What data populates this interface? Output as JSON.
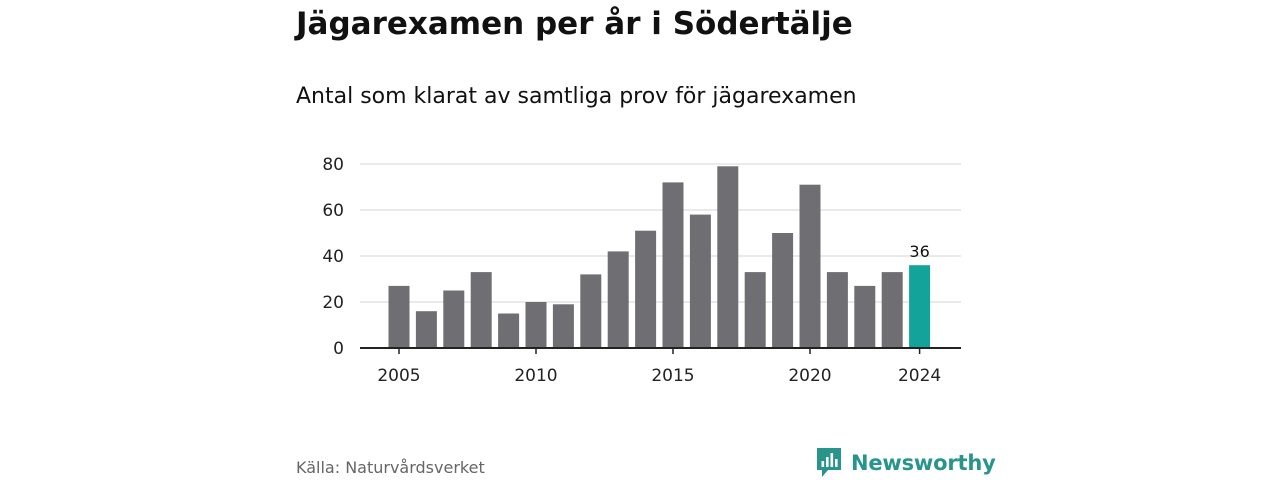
{
  "header": {
    "title": "Jägarexamen per år i Södertälje",
    "subtitle": "Antal som klarat av samtliga prov för jägarexamen"
  },
  "chart_data": {
    "type": "bar",
    "title": "Jägarexamen per år i Södertälje",
    "subtitle": "Antal som klarat av samtliga prov för jägarexamen",
    "xlabel": "",
    "ylabel": "",
    "categories": [
      2005,
      2006,
      2007,
      2008,
      2009,
      2010,
      2011,
      2012,
      2013,
      2014,
      2015,
      2016,
      2017,
      2018,
      2019,
      2020,
      2021,
      2022,
      2023,
      2024
    ],
    "values": [
      27,
      16,
      25,
      33,
      15,
      20,
      19,
      32,
      42,
      51,
      72,
      58,
      79,
      33,
      50,
      71,
      33,
      27,
      33,
      36
    ],
    "ylim": [
      0,
      80
    ],
    "yticks": [
      0,
      20,
      40,
      60,
      80
    ],
    "xticks": [
      2005,
      2010,
      2015,
      2020,
      2024
    ],
    "grid": true,
    "bar_color": "#6f6e73",
    "highlight_color": "#14a39a",
    "highlight_category": 2024,
    "data_labels": [
      {
        "category": 2024,
        "text": "36"
      }
    ]
  },
  "footer": {
    "source": "Källa: Naturvårdsverket",
    "brand": "Newsworthy",
    "brand_color": "#27958b",
    "brand_icon": "bar-chart-speech-bubble-icon"
  }
}
